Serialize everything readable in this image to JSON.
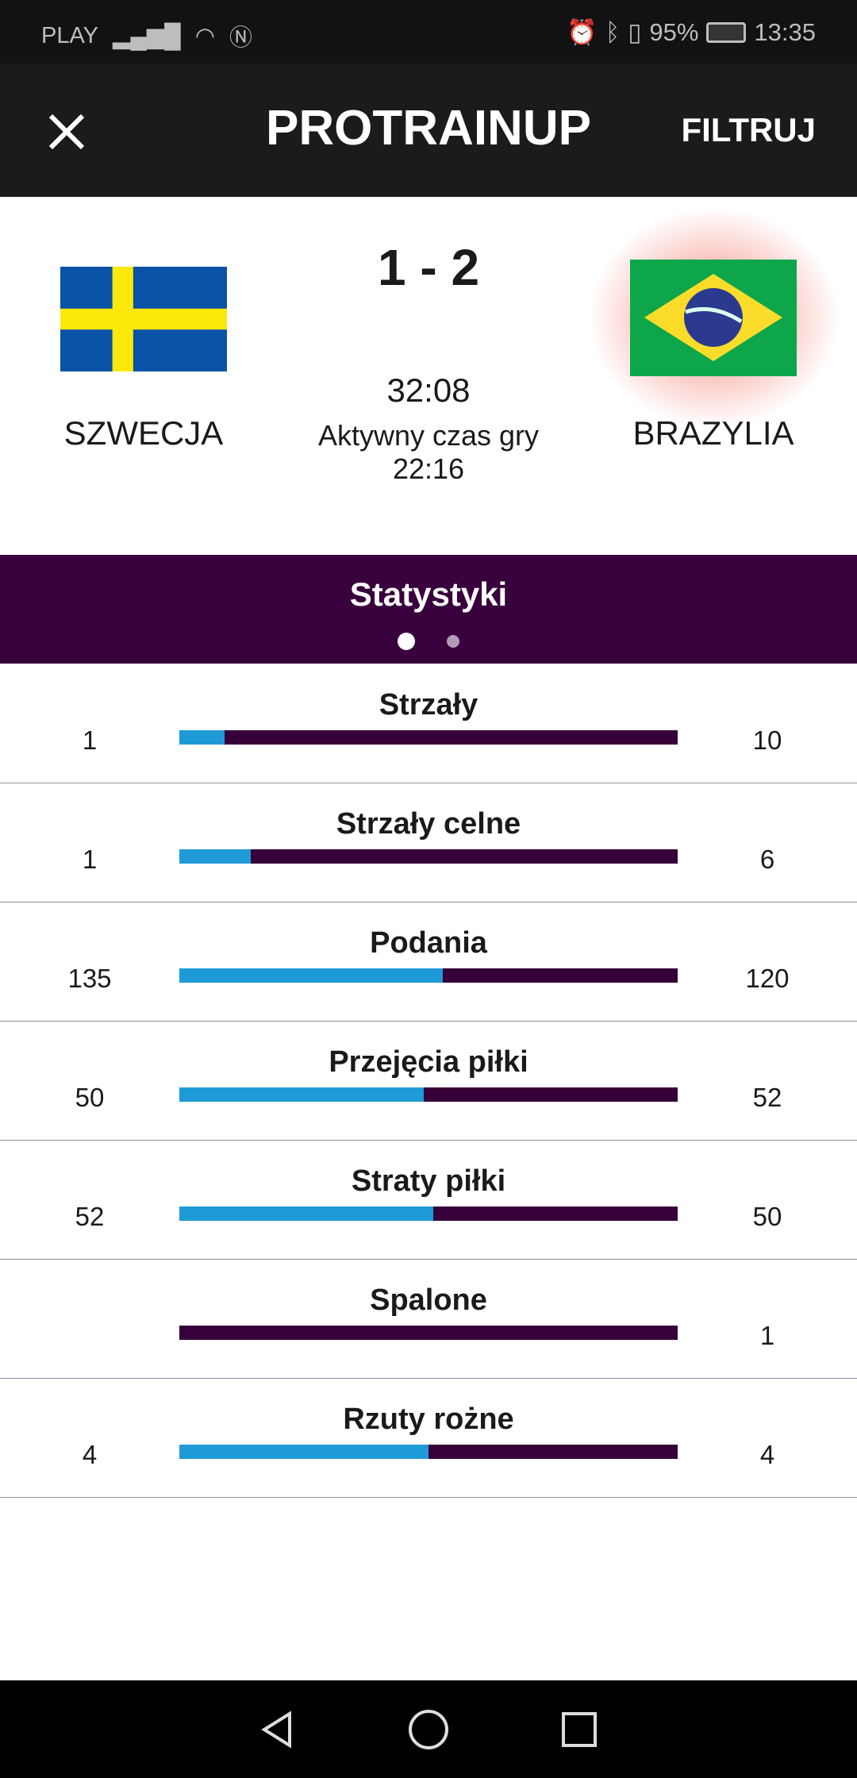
{
  "status_bar": {
    "carrier": "PLAY",
    "battery": "95%",
    "time": "13:35"
  },
  "header": {
    "title": "PROTRAINUP",
    "filter_label": "FILTRUJ"
  },
  "match": {
    "home": {
      "name": "SZWECJA",
      "flag": "sweden-flag"
    },
    "away": {
      "name": "BRAZYLIA",
      "flag": "brazil-flag"
    },
    "score": "1 - 2",
    "time": "32:08",
    "active_label": "Aktywny czas gry",
    "active_time": "22:16"
  },
  "stats_section": {
    "title": "Statystyki",
    "page": 1,
    "pages": 2
  },
  "stats": [
    {
      "label": "Strzały",
      "home": "1",
      "away": "10",
      "home_fraction": 0.091
    },
    {
      "label": "Strzały celne",
      "home": "1",
      "away": "6",
      "home_fraction": 0.143
    },
    {
      "label": "Podania",
      "home": "135",
      "away": "120",
      "home_fraction": 0.529
    },
    {
      "label": "Przejęcia piłki",
      "home": "50",
      "away": "52",
      "home_fraction": 0.49
    },
    {
      "label": "Straty piłki",
      "home": "52",
      "away": "50",
      "home_fraction": 0.51
    },
    {
      "label": "Spalone",
      "home": "",
      "away": "1",
      "home_fraction": 0
    },
    {
      "label": "Rzuty rożne",
      "home": "4",
      "away": "4",
      "home_fraction": 0.5
    }
  ],
  "colors": {
    "home_bar": "#1e9bd7",
    "away_bar": "#36003a",
    "band": "#38003c"
  }
}
